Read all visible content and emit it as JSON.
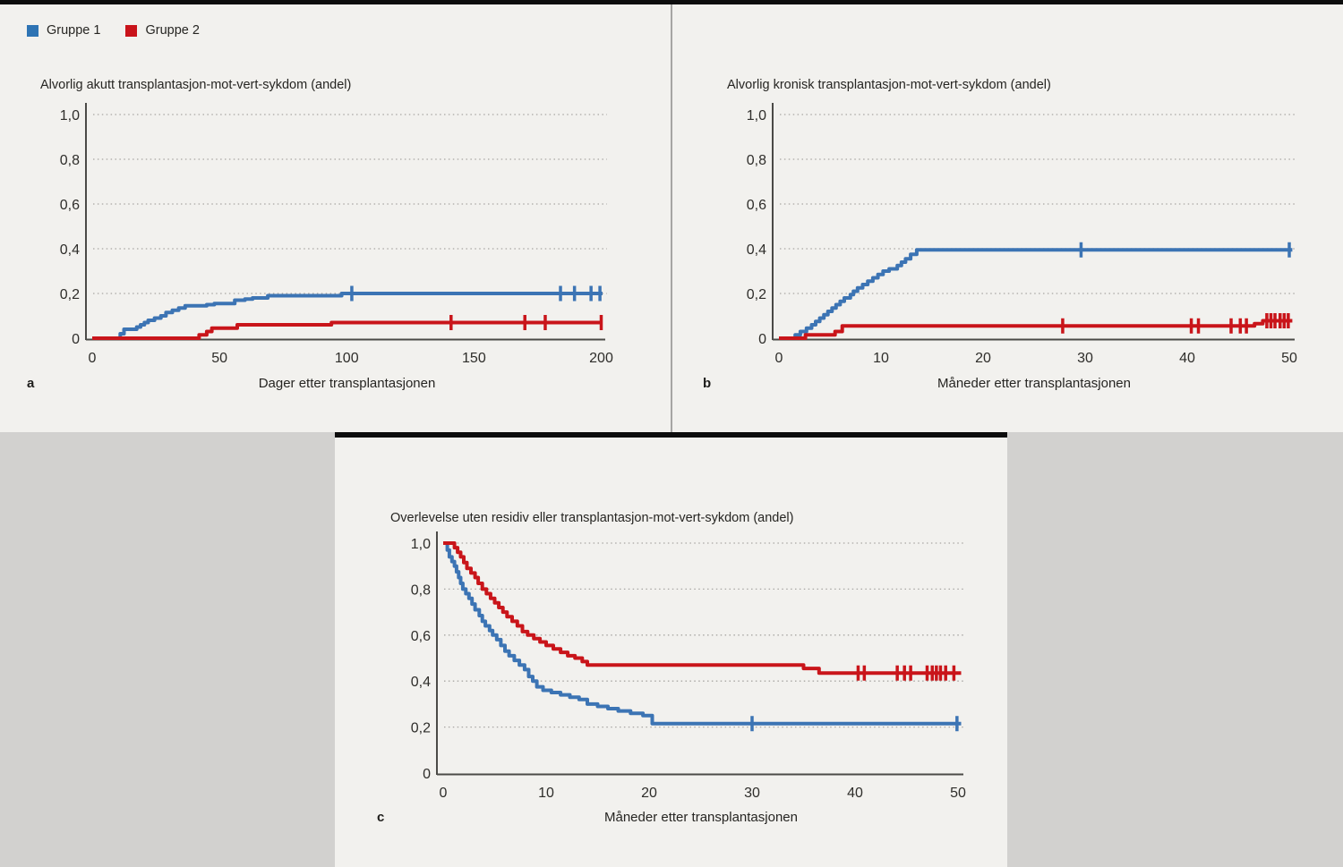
{
  "legend": {
    "items": [
      {
        "label": "Gruppe 1",
        "color": "#2e74b4"
      },
      {
        "label": "Gruppe 2",
        "color": "#c9131a"
      }
    ],
    "position": "top-left"
  },
  "chart_data": [
    {
      "panel": "a",
      "letter": "a",
      "type": "line",
      "subtype": "kaplan-meier-step",
      "title": "Alvorlig akutt transplantasjon-mot-vert-sykdom (andel)",
      "xlabel": "Dager etter transplantasjonen",
      "ylabel": "",
      "xlim": [
        0,
        200
      ],
      "ylim": [
        0,
        1
      ],
      "grid": "dotted horizontal",
      "x_ticks": [
        {
          "value": 0,
          "label": "0"
        },
        {
          "value": 50,
          "label": "50"
        },
        {
          "value": 100,
          "label": "100"
        },
        {
          "value": 150,
          "label": "150"
        },
        {
          "value": 200,
          "label": "200"
        }
      ],
      "y_ticks": [
        {
          "value": 1.0,
          "label": "1,0"
        },
        {
          "value": 0.8,
          "label": "0,8"
        },
        {
          "value": 0.6,
          "label": "0,6"
        },
        {
          "value": 0.4,
          "label": "0,4"
        },
        {
          "value": 0.2,
          "label": "0,2"
        },
        {
          "value": 0,
          "label": "0"
        }
      ],
      "series": [
        {
          "name": "Gruppe 1",
          "color": "#3c74b4",
          "steps": [
            [
              0,
              0
            ],
            [
              11,
              0.02
            ],
            [
              12.5,
              0.04
            ],
            [
              17.5,
              0.05
            ],
            [
              19,
              0.06
            ],
            [
              20.5,
              0.07
            ],
            [
              22,
              0.08
            ],
            [
              24.5,
              0.09
            ],
            [
              27,
              0.1
            ],
            [
              29,
              0.115
            ],
            [
              31.5,
              0.125
            ],
            [
              34,
              0.135
            ],
            [
              36.5,
              0.145
            ],
            [
              45,
              0.15
            ],
            [
              48,
              0.155
            ],
            [
              56,
              0.17
            ],
            [
              60,
              0.175
            ],
            [
              63,
              0.18
            ],
            [
              69,
              0.19
            ],
            [
              98,
              0.2
            ],
            [
              200.5,
              0.2
            ]
          ],
          "censors": [
            [
              102,
              0.2
            ],
            [
              184,
              0.2
            ],
            [
              189.5,
              0.2
            ],
            [
              196,
              0.2
            ],
            [
              199.5,
              0.2
            ]
          ]
        },
        {
          "name": "Gruppe 2",
          "color": "#c9151a",
          "steps": [
            [
              0,
              0
            ],
            [
              42,
              0.015
            ],
            [
              45,
              0.03
            ],
            [
              47,
              0.045
            ],
            [
              57,
              0.06
            ],
            [
              94,
              0.07
            ],
            [
              200.5,
              0.07
            ]
          ],
          "censors": [
            [
              141,
              0.07
            ],
            [
              170,
              0.07
            ],
            [
              178,
              0.07
            ],
            [
              200,
              0.07
            ]
          ]
        }
      ]
    },
    {
      "panel": "b",
      "letter": "b",
      "type": "line",
      "subtype": "kaplan-meier-step",
      "title": "Alvorlig kronisk transplantasjon-mot-vert-sykdom (andel)",
      "xlabel": "Måneder etter transplantasjonen",
      "ylabel": "",
      "xlim": [
        0,
        50
      ],
      "ylim": [
        0,
        1
      ],
      "grid": "dotted horizontal",
      "x_ticks": [
        {
          "value": 0,
          "label": "0"
        },
        {
          "value": 10,
          "label": "10"
        },
        {
          "value": 20,
          "label": "20"
        },
        {
          "value": 30,
          "label": "30"
        },
        {
          "value": 40,
          "label": "40"
        },
        {
          "value": 50,
          "label": "50"
        }
      ],
      "y_ticks": [
        {
          "value": 1.0,
          "label": "1,0"
        },
        {
          "value": 0.8,
          "label": "0,8"
        },
        {
          "value": 0.6,
          "label": "0,6"
        },
        {
          "value": 0.4,
          "label": "0,4"
        },
        {
          "value": 0.2,
          "label": "0,2"
        },
        {
          "value": 0,
          "label": "0"
        }
      ],
      "series": [
        {
          "name": "Gruppe 1",
          "color": "#3c74b4",
          "steps": [
            [
              0,
              0
            ],
            [
              1.6,
              0.015
            ],
            [
              2.1,
              0.03
            ],
            [
              2.7,
              0.045
            ],
            [
              3.2,
              0.06
            ],
            [
              3.6,
              0.075
            ],
            [
              4.0,
              0.09
            ],
            [
              4.4,
              0.105
            ],
            [
              4.8,
              0.12
            ],
            [
              5.2,
              0.135
            ],
            [
              5.6,
              0.15
            ],
            [
              6.0,
              0.165
            ],
            [
              6.4,
              0.18
            ],
            [
              7.0,
              0.195
            ],
            [
              7.3,
              0.21
            ],
            [
              7.7,
              0.225
            ],
            [
              8.2,
              0.24
            ],
            [
              8.7,
              0.255
            ],
            [
              9.2,
              0.27
            ],
            [
              9.7,
              0.285
            ],
            [
              10.2,
              0.3
            ],
            [
              10.8,
              0.31
            ],
            [
              11.6,
              0.325
            ],
            [
              12.0,
              0.34
            ],
            [
              12.4,
              0.355
            ],
            [
              12.9,
              0.375
            ],
            [
              13.5,
              0.395
            ],
            [
              50.3,
              0.395
            ]
          ],
          "censors": [
            [
              29.6,
              0.395
            ],
            [
              50,
              0.395
            ]
          ]
        },
        {
          "name": "Gruppe 2",
          "color": "#c9151a",
          "steps": [
            [
              0,
              0
            ],
            [
              2.6,
              0.015
            ],
            [
              5.5,
              0.03
            ],
            [
              6.2,
              0.055
            ],
            [
              46.6,
              0.065
            ],
            [
              47.4,
              0.078
            ],
            [
              50.3,
              0.078
            ]
          ],
          "censors": [
            [
              27.8,
              0.055
            ],
            [
              40.4,
              0.055
            ],
            [
              41.1,
              0.055
            ],
            [
              44.3,
              0.055
            ],
            [
              45.2,
              0.055
            ],
            [
              45.8,
              0.055
            ],
            [
              47.8,
              0.078
            ],
            [
              48.2,
              0.078
            ],
            [
              48.6,
              0.078
            ],
            [
              49.1,
              0.078
            ],
            [
              49.5,
              0.078
            ],
            [
              49.9,
              0.078
            ]
          ]
        }
      ]
    },
    {
      "panel": "c",
      "letter": "c",
      "type": "line",
      "subtype": "kaplan-meier-step",
      "title": "Overlevelse uten residiv eller transplantasjon-mot-vert-sykdom (andel)",
      "xlabel": "Måneder etter transplantasjonen",
      "ylabel": "",
      "xlim": [
        0,
        50
      ],
      "ylim": [
        0,
        1
      ],
      "grid": "dotted horizontal",
      "x_ticks": [
        {
          "value": 0,
          "label": "0"
        },
        {
          "value": 10,
          "label": "10"
        },
        {
          "value": 20,
          "label": "20"
        },
        {
          "value": 30,
          "label": "30"
        },
        {
          "value": 40,
          "label": "40"
        },
        {
          "value": 50,
          "label": "50"
        }
      ],
      "y_ticks": [
        {
          "value": 1.0,
          "label": "1,0"
        },
        {
          "value": 0.8,
          "label": "0,8"
        },
        {
          "value": 0.6,
          "label": "0,6"
        },
        {
          "value": 0.4,
          "label": "0,4"
        },
        {
          "value": 0.2,
          "label": "0,2"
        },
        {
          "value": 0,
          "label": "0"
        }
      ],
      "series": [
        {
          "name": "Gruppe 1",
          "color": "#3c74b4",
          "steps": [
            [
              0,
              1.0
            ],
            [
              0.4,
              0.97
            ],
            [
              0.6,
              0.94
            ],
            [
              0.85,
              0.92
            ],
            [
              1.1,
              0.9
            ],
            [
              1.3,
              0.875
            ],
            [
              1.5,
              0.85
            ],
            [
              1.7,
              0.825
            ],
            [
              1.9,
              0.8
            ],
            [
              2.2,
              0.78
            ],
            [
              2.5,
              0.76
            ],
            [
              2.8,
              0.735
            ],
            [
              3.1,
              0.71
            ],
            [
              3.5,
              0.685
            ],
            [
              3.8,
              0.66
            ],
            [
              4.1,
              0.64
            ],
            [
              4.5,
              0.62
            ],
            [
              4.8,
              0.6
            ],
            [
              5.2,
              0.58
            ],
            [
              5.6,
              0.555
            ],
            [
              6.0,
              0.53
            ],
            [
              6.4,
              0.51
            ],
            [
              6.9,
              0.49
            ],
            [
              7.4,
              0.47
            ],
            [
              7.9,
              0.45
            ],
            [
              8.3,
              0.42
            ],
            [
              8.7,
              0.4
            ],
            [
              9.1,
              0.375
            ],
            [
              9.7,
              0.36
            ],
            [
              10.5,
              0.35
            ],
            [
              11.4,
              0.34
            ],
            [
              12.3,
              0.33
            ],
            [
              13.2,
              0.32
            ],
            [
              14.0,
              0.3
            ],
            [
              15.0,
              0.29
            ],
            [
              16.0,
              0.28
            ],
            [
              17.0,
              0.27
            ],
            [
              18.2,
              0.26
            ],
            [
              19.4,
              0.25
            ],
            [
              20.3,
              0.215
            ],
            [
              50.3,
              0.215
            ]
          ],
          "censors": [
            [
              30,
              0.215
            ],
            [
              49.9,
              0.215
            ]
          ]
        },
        {
          "name": "Gruppe 2",
          "color": "#c9151a",
          "steps": [
            [
              0,
              1.0
            ],
            [
              1.1,
              0.98
            ],
            [
              1.4,
              0.96
            ],
            [
              1.7,
              0.94
            ],
            [
              2.0,
              0.915
            ],
            [
              2.3,
              0.89
            ],
            [
              2.7,
              0.87
            ],
            [
              3.1,
              0.85
            ],
            [
              3.4,
              0.825
            ],
            [
              3.8,
              0.8
            ],
            [
              4.2,
              0.78
            ],
            [
              4.6,
              0.76
            ],
            [
              5.0,
              0.74
            ],
            [
              5.4,
              0.72
            ],
            [
              5.8,
              0.7
            ],
            [
              6.2,
              0.68
            ],
            [
              6.7,
              0.66
            ],
            [
              7.2,
              0.64
            ],
            [
              7.7,
              0.615
            ],
            [
              8.2,
              0.6
            ],
            [
              8.8,
              0.585
            ],
            [
              9.4,
              0.57
            ],
            [
              10.0,
              0.555
            ],
            [
              10.7,
              0.54
            ],
            [
              11.4,
              0.525
            ],
            [
              12.1,
              0.51
            ],
            [
              12.8,
              0.5
            ],
            [
              13.5,
              0.485
            ],
            [
              14.0,
              0.47
            ],
            [
              35.0,
              0.455
            ],
            [
              36.5,
              0.435
            ],
            [
              50.3,
              0.435
            ]
          ],
          "censors": [
            [
              40.3,
              0.435
            ],
            [
              40.9,
              0.435
            ],
            [
              44.1,
              0.435
            ],
            [
              44.8,
              0.435
            ],
            [
              45.4,
              0.435
            ],
            [
              47.0,
              0.435
            ],
            [
              47.5,
              0.435
            ],
            [
              47.9,
              0.435
            ],
            [
              48.3,
              0.435
            ],
            [
              48.8,
              0.435
            ],
            [
              49.6,
              0.435
            ]
          ]
        }
      ]
    }
  ]
}
